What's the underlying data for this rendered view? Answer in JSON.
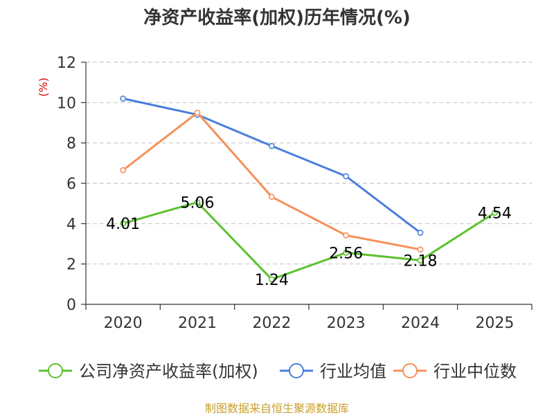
{
  "chart_data": {
    "type": "line",
    "title": "净资产收益率(加权)历年情况(%)",
    "ylabel": "(%)",
    "xlabel": "",
    "categories": [
      "2020",
      "2021",
      "2022",
      "2023",
      "2024",
      "2025"
    ],
    "ylim": [
      0,
      12
    ],
    "yticks": [
      0,
      2,
      4,
      6,
      8,
      10,
      12
    ],
    "grid": true,
    "legend_position": "bottom",
    "series": [
      {
        "name": "公司净资产收益率(加权)",
        "color": "#5cc12f",
        "values": [
          4.01,
          5.06,
          1.24,
          2.56,
          2.18,
          4.54
        ],
        "show_labels": true
      },
      {
        "name": "行业均值",
        "color": "#4a7fdc",
        "values": [
          10.2,
          9.4,
          7.85,
          6.35,
          3.55,
          null
        ],
        "show_labels": false
      },
      {
        "name": "行业中位数",
        "color": "#f59059",
        "values": [
          6.65,
          9.5,
          5.33,
          3.42,
          2.72,
          null
        ],
        "show_labels": false
      }
    ],
    "data_labels": [
      "4.01",
      "5.06",
      "1.24",
      "2.56",
      "2.18",
      "4.54"
    ]
  },
  "footer": {
    "source": "制图数据来自恒生聚源数据库"
  }
}
